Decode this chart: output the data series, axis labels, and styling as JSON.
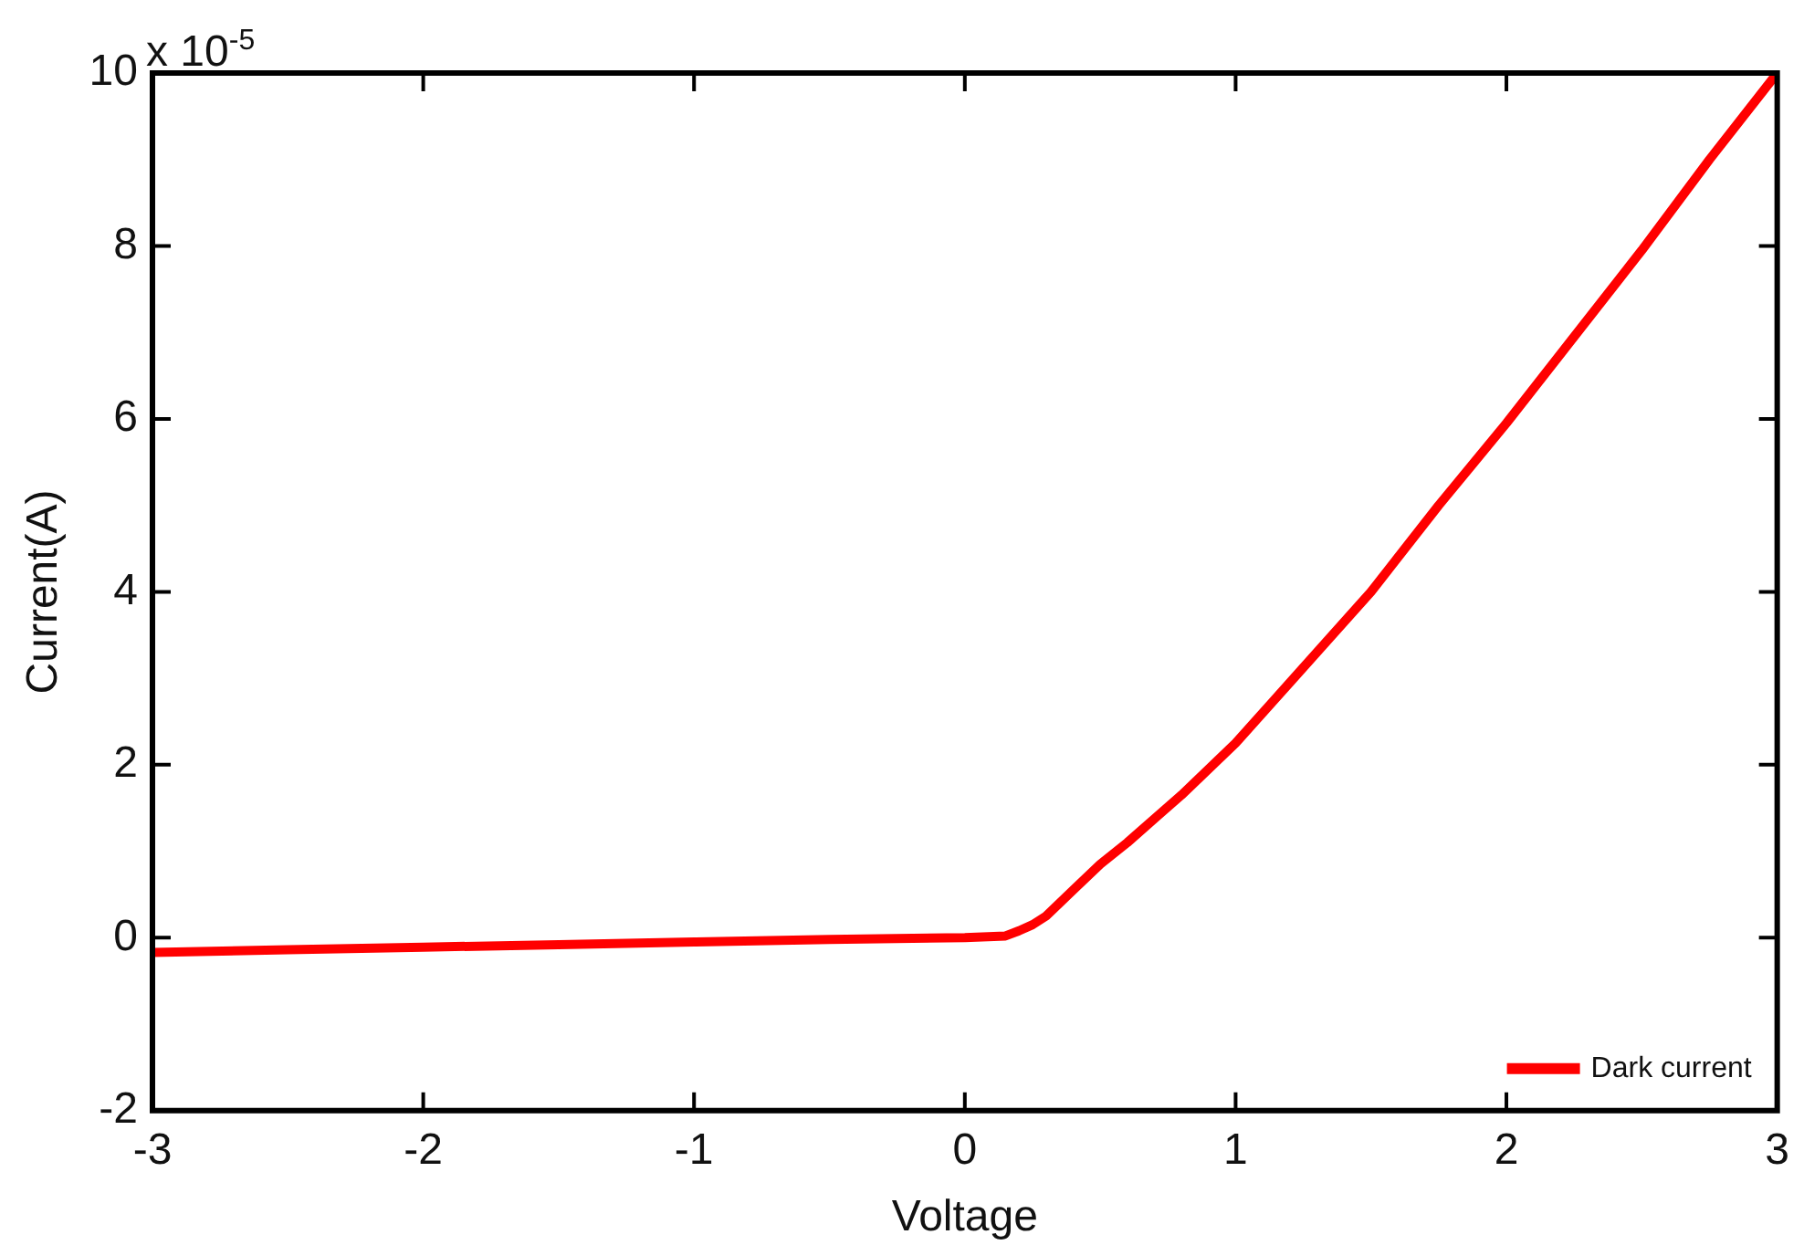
{
  "chart_data": {
    "type": "line",
    "xlabel": "Voltage",
    "ylabel": "Current(A)",
    "annotations": [
      "x 10$^{-5}$"
    ],
    "xlim": [
      -3,
      3
    ],
    "xticks": [
      -3,
      -2,
      -1,
      0,
      1,
      2,
      3
    ],
    "ylim": [
      -2,
      10
    ],
    "yticks": [
      -2,
      0,
      2,
      4,
      6,
      8,
      10
    ],
    "grid": false,
    "legend": "bottom right",
    "marker": "none",
    "line_style": "solid",
    "series": [
      {
        "name": "Dark current",
        "color": "#ff0000",
        "x": [
          -3,
          -2.5,
          -2,
          -1.5,
          -1,
          -0.5,
          0,
          0.15,
          0.2,
          0.25,
          0.3,
          0.4,
          0.5,
          0.6,
          0.8,
          1,
          1.2,
          1.5,
          1.75,
          2,
          2.25,
          2.5,
          2.75,
          3
        ],
        "values": [
          -0.17,
          -0.14,
          -0.11,
          -0.08,
          -0.05,
          -0.02,
          0,
          0.02,
          0.08,
          0.15,
          0.25,
          0.55,
          0.85,
          1.1,
          1.65,
          2.25,
          2.95,
          4,
          5,
          5.95,
          6.95,
          7.95,
          9,
          10
        ]
      }
    ]
  }
}
